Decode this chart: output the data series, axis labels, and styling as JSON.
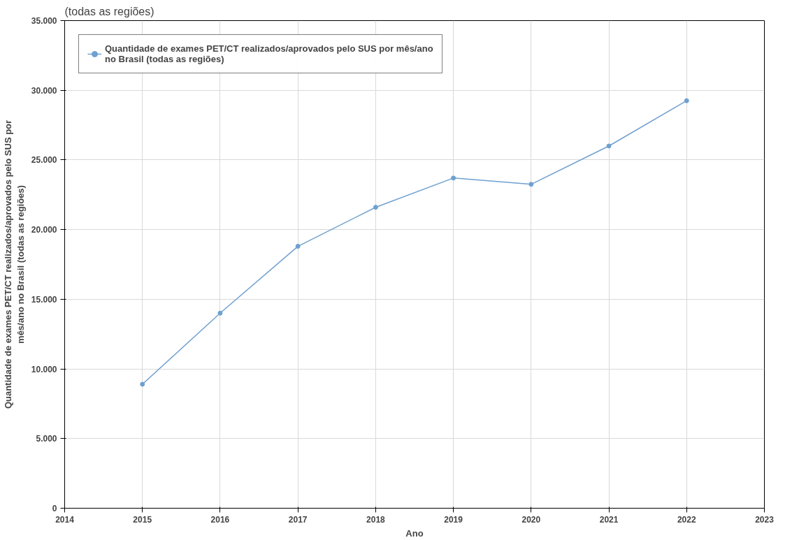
{
  "chart_data": {
    "type": "line",
    "title": "(todas as regiões)",
    "xlabel": "Ano",
    "ylabel": "Quantidade de exames PET/CT realizados/aprovados pelo SUS por mês/ano no Brasil (todas as regiões)",
    "x": [
      2015,
      2016,
      2017,
      2018,
      2019,
      2020,
      2021,
      2022
    ],
    "series": [
      {
        "name": "Quantidade de exames PET/CT realizados/aprovados pelo SUS por mês/ano no Brasil (todas as regiões)",
        "color": "#6fa0d0",
        "values": [
          8900,
          14000,
          18800,
          21600,
          23700,
          23250,
          26000,
          29250
        ]
      }
    ],
    "xlim": [
      2014,
      2023
    ],
    "xticks": [
      2014,
      2015,
      2016,
      2017,
      2018,
      2019,
      2020,
      2021,
      2022,
      2023
    ],
    "ylim": [
      0,
      35000
    ],
    "yticks": [
      {
        "value": 0,
        "label": "0"
      },
      {
        "value": 5000,
        "label": "5.000"
      },
      {
        "value": 10000,
        "label": "10.000"
      },
      {
        "value": 15000,
        "label": "15.000"
      },
      {
        "value": 20000,
        "label": "20.000"
      },
      {
        "value": 25000,
        "label": "25.000"
      },
      {
        "value": 30000,
        "label": "30.000"
      },
      {
        "value": 35000,
        "label": "35.000"
      }
    ],
    "grid": true,
    "legend": "top left",
    "marker": "circle",
    "line_style": "solid"
  }
}
